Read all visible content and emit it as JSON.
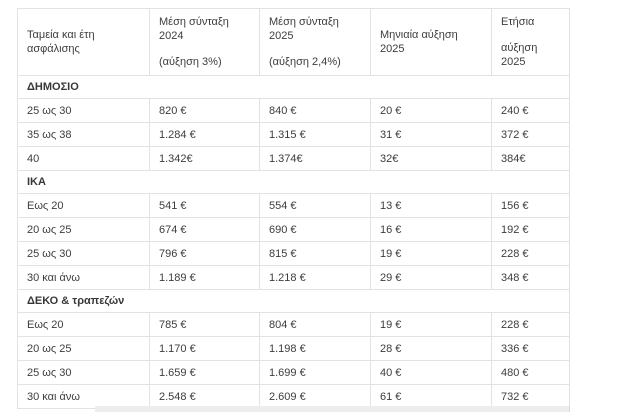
{
  "colors": {
    "page_background": "#ffffff",
    "text": "#3d3d3d",
    "border": "#e2e2e2",
    "partial_band": "#ededed"
  },
  "chart_data": {
    "type": "table",
    "columns": [
      "Ταμεία και έτη ασφάλισης",
      "Μέση σύνταξη 2024 (αύξηση 3%)",
      "Μέση σύνταξη 2025 (αύξηση 2,4%)",
      "Μηνιαία αύξηση 2025",
      "Ετήσια αύξηση 2025"
    ],
    "header_lines": [
      [
        "Ταμεία και έτη ασφάλισης"
      ],
      [
        "Μέση σύνταξη 2024",
        "(αύξηση 3%)"
      ],
      [
        "Μέση σύνταξη 2025",
        "(αύξηση 2,4%)"
      ],
      [
        "Μηνιαία αύξηση 2025"
      ],
      [
        "Ετήσια",
        "αύξηση 2025"
      ]
    ],
    "sections": [
      {
        "name": "ΔΗΜΟΣΙΟ",
        "rows": [
          {
            "label": "25 ως 30",
            "values": [
              "820 €",
              "840 €",
              "20 €",
              "240 €"
            ]
          },
          {
            "label": "35 ως 38",
            "values": [
              "1.284 €",
              "1.315 €",
              "31 €",
              "372 €"
            ]
          },
          {
            "label": "40",
            "values": [
              "1.342€",
              "1.374€",
              "32€",
              "384€"
            ]
          }
        ]
      },
      {
        "name": "ΙΚΑ",
        "rows": [
          {
            "label": "Εως 20",
            "values": [
              "541 €",
              "554 €",
              "13 €",
              "156 €"
            ]
          },
          {
            "label": "20 ως 25",
            "values": [
              "674 €",
              "690 €",
              "16 €",
              "192 €"
            ]
          },
          {
            "label": "25 ως 30",
            "values": [
              "796 €",
              "815 €",
              "19 €",
              "228 €"
            ]
          },
          {
            "label": "30 και άνω",
            "values": [
              "1.189 €",
              "1.218 €",
              "29 €",
              "348 €"
            ]
          }
        ]
      },
      {
        "name": "ΔΕΚΟ & τραπεζών",
        "rows": [
          {
            "label": "Εως 20",
            "values": [
              "785 €",
              "804 €",
              "19 €",
              "228 €"
            ]
          },
          {
            "label": "20 ως 25",
            "values": [
              "1.170 €",
              "1.198 €",
              "28 €",
              "336 €"
            ]
          },
          {
            "label": "25 ως 30",
            "values": [
              "1.659 €",
              "1.699 €",
              "40 €",
              "480 €"
            ]
          },
          {
            "label": "30 και άνω",
            "values": [
              "2.548 €",
              "2.609 €",
              "61 €",
              "732 €"
            ]
          }
        ]
      }
    ]
  }
}
